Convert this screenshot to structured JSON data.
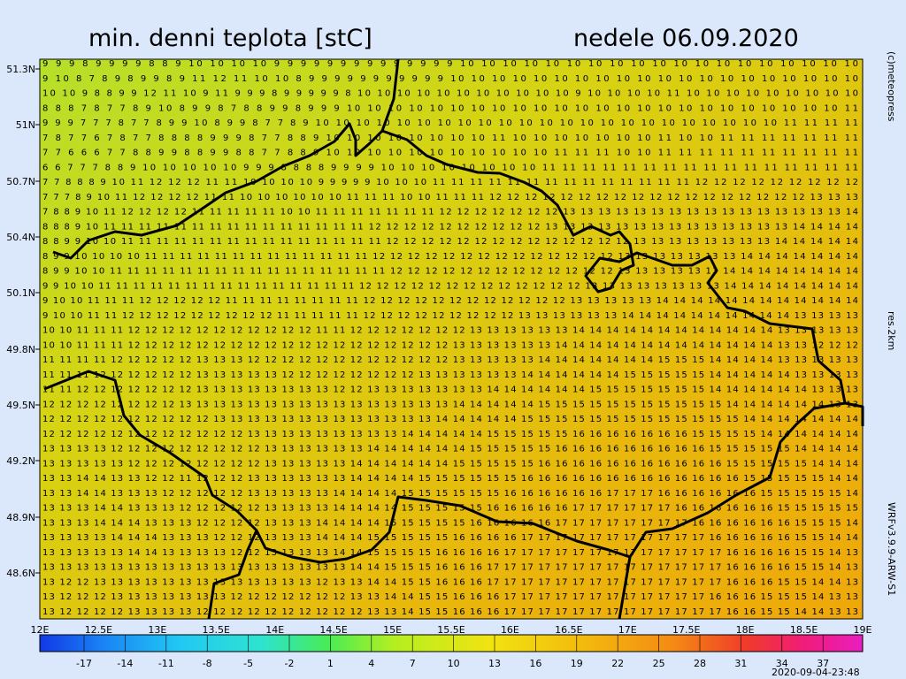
{
  "header": {
    "title": "min. denni teplota [stC]",
    "date": "nedele 06.09.2020"
  },
  "side_labels": [
    "(c)meteopress",
    "res.2km",
    "WRFv3.9.9-ARW-S1"
  ],
  "timestamp": "2020-09-04-23:48",
  "lat_labels": [
    "51.3N",
    "51N",
    "50.7N",
    "50.4N",
    "50.1N",
    "49.8N",
    "49.5N",
    "49.2N",
    "48.9N",
    "48.6N"
  ],
  "lon_labels": [
    "12E",
    "12.5E",
    "13E",
    "13.5E",
    "14E",
    "14.5E",
    "15E",
    "15.5E",
    "16E",
    "16.5E",
    "17E",
    "17.5E",
    "18E",
    "18.5E",
    "19E"
  ],
  "colorbar_labels": [
    "-17",
    "-14",
    "-11",
    "-8",
    "-5",
    "-2",
    "1",
    "4",
    "7",
    "10",
    "13",
    "16",
    "19",
    "22",
    "25",
    "28",
    "31",
    "34",
    "37"
  ],
  "grid_rows": [
    "9 9 9 8 9 9 9 9 8 8 9 10 10 10 10 9 9 9 9 9 9 9 9 9 9 9 9 9 9 10 10 10 10 10 10 10 10 10 10 10 10 10 10 10 10 10 10 10",
    "9 10 8 7 8 9 8 9 9 8 9 11 12 11 10 10 8 9 9 9 9 9 9 9 9 9 9 9 10 10 10 10 10 10 10 10 10 10 10 10 10 10 10 10 10 10 10 10",
    "10 10 9 8 8 9 9 12 11 10 9 11 9 9 9 8 9 9 9 9 9 8 10 10 10 10 10 10 10 10 10 10 10 9 10 10 10 10 11 10 10 10 10 10 10 10 10 10",
    "8 8 8 7 8 7 7 8 9 10 8 9 9 8 7 8 8 9 9 8 9 9 9 10 10 10 10 10 10 10 10 10 10 10 10 10 10 10 10 10 10 10 10 10 10 10 10 11",
    "9 9 9 7 7 7 8 7 7 8 9 9 10 8 9 9 8 7 7 8 9 10 10 10 10 10 10 10 10 10 10 10 10 10 10 10 10 10 10 10 10 10 10 10 11 11 11 11",
    "7 8 7 7 6 7 8 7 7 8 8 8 8 9 9 9 8 7 7 8 8 9 10 10 10 10 10 10 10 10 11 10 10 10 10 10 10 10 11 10 10 11 11 11 11 11 11 11",
    "7 7 6 6 6 7 7 8 8 9 9 8 8 9 9 8 8 7 7 8 8 9 10 10 10 10 10 10 10 10 10 10 10 11 11 11 10 10 11 11 11 11 11 11 11 11 11 11",
    "6 6 7 7 7 8 8 9 10 10 10 10 10 9 9 9 8 8 8 8 9 9 9 9 10 10 10 10 10 10 10 10 11 11 11 11 11 11 11 11 11 11 11 11 11 11 11 11",
    "7 7 8 8 8 9 10 11 12 12 12 11 11 10 10 10 10 9 9 9 9 9 10 10 10 11 11 11 11 11 11 11 11 11 11 11 11 11 11 12 12 12 12 12 12 12 12 12",
    "7 7 7 8 9 10 11 12 12 12 12 11 11 10 10 10 10 10 10 11 11 11 10 10 11 11 11 12 12 12 12 12 12 12 12 12 12 12 12 12 12 12 12 12 12 13 13 13",
    "7 8 8 9 10 11 12 12 12 12 11 11 11 11 11 10 10 11 11 11 11 11 11 11 12 12 12 12 12 12 12 13 13 13 13 13 13 13 13 13 13 13 13 13 13 13 13 14",
    "8 8 8 9 10 11 11 11 11 11 11 11 11 11 11 11 11 11 11 11 12 12 12 12 12 12 12 12 12 12 13 13 13 13 13 13 13 13 13 13 13 13 13 13 14 14 14 14",
    "8 8 9 9 10 10 11 11 11 11 11 11 11 11 11 11 11 11 11 11 11 12 12 12 12 12 12 12 12 12 12 12 12 12 12 13 13 13 13 13 13 13 13 14 14 14 14 14",
    "8 9 9 10 10 10 10 11 11 11 11 11 11 11 11 11 11 11 11 11 12 12 12 12 12 12 12 12 12 12 12 12 12 12 13 13 13 13 13 13 13 14 14 14 14 14 14 14",
    "8 9 9 10 10 11 11 11 11 11 11 11 11 11 11 11 11 11 11 11 11 12 12 12 12 12 12 12 12 12 12 12 12 12 13 13 13 13 13 13 14 14 14 14 14 14 14 14",
    "9 9 10 10 11 11 11 11 11 11 11 11 11 11 11 11 11 11 11 12 12 12 12 12 12 12 12 12 12 12 12 12 13 13 13 13 13 13 13 13 14 14 14 14 14 14 14 14",
    "9 10 10 11 11 11 12 12 12 12 12 11 11 11 11 11 11 11 11 12 12 12 12 12 12 12 12 12 12 12 12 13 13 13 13 13 14 14 14 14 14 14 14 14 14 14 14 14",
    "9 10 10 11 11 12 12 12 12 12 12 12 12 12 11 11 11 11 11 12 12 12 12 12 12 12 12 12 13 13 13 13 13 13 14 14 14 14 14 14 14 14 14 14 13 13 13 13",
    "10 10 11 11 11 12 12 12 12 12 12 12 12 12 12 12 11 11 12 12 12 12 12 12 12 13 13 13 13 13 13 14 14 14 14 14 14 14 14 14 14 14 14 13 13 13 13 13",
    "10 10 11 11 11 12 12 12 12 12 12 12 12 12 12 12 12 12 12 12 12 12 12 12 13 13 13 13 13 13 14 14 14 14 14 14 14 14 14 14 14 14 14 13 13 12 12 12",
    "11 11 11 11 12 12 12 12 12 13 13 13 12 12 12 12 12 12 12 12 12 12 12 12 13 13 13 13 13 14 14 14 14 14 14 14 15 15 15 14 14 14 14 13 13 13 13 13",
    "11 11 11 12 12 12 12 12 12 13 13 13 13 13 12 12 12 12 12 12 12 12 13 13 13 13 13 13 14 14 14 14 14 14 15 15 15 15 15 14 14 14 14 14 13 13 13 13",
    "11 11 12 12 12 12 12 12 12 13 13 13 13 13 13 13 13 12 12 13 13 13 13 13 13 13 14 14 14 14 14 14 15 15 15 15 15 15 15 14 14 14 14 14 14 13 13 13",
    "12 12 12 12 12 12 12 12 13 13 13 13 13 13 13 13 13 13 13 13 13 13 13 13 14 14 14 14 14 15 15 15 15 15 15 15 15 15 15 15 14 14 14 14 14 14 13 13",
    "12 12 12 12 12 12 12 12 12 12 13 13 13 13 13 13 13 13 13 13 13 13 13 14 14 14 14 14 15 15 15 15 15 15 15 15 15 15 15 15 15 14 14 14 14 14 14 14",
    "12 12 12 12 12 12 12 12 12 12 12 12 13 13 13 13 13 13 13 13 13 14 14 14 14 14 15 15 15 15 15 16 16 16 16 16 16 16 15 15 15 15 14 14 14 14 14 14",
    "13 13 13 13 12 12 12 12 12 12 12 12 12 13 13 13 13 13 13 14 14 14 14 14 14 15 15 15 15 15 16 16 16 16 16 16 16 16 16 15 15 15 15 15 14 14 14 14",
    "13 13 13 13 13 12 12 12 12 12 12 12 12 13 13 13 13 13 14 14 14 14 14 14 15 15 15 15 15 16 16 16 16 16 16 16 16 16 16 16 15 15 15 15 15 14 14 14",
    "13 13 14 14 13 13 12 12 11 12 12 12 13 13 13 13 13 13 14 14 14 14 15 15 15 15 15 15 16 16 16 16 16 16 16 16 16 16 16 16 16 15 15 15 15 15 14 14",
    "13 13 14 14 13 13 13 12 12 12 12 12 13 13 13 13 13 14 14 14 14 15 15 15 15 15 15 16 16 16 16 16 16 17 17 17 16 16 16 16 16 16 15 15 15 15 15 14",
    "13 13 13 14 14 13 13 13 12 12 12 12 12 13 13 13 13 14 14 14 14 15 15 15 15 15 16 16 16 16 16 17 17 17 17 17 17 16 16 16 16 16 16 15 15 15 15 15",
    "13 13 13 14 14 14 13 13 13 12 12 12 12 13 13 13 14 14 14 14 15 15 15 15 15 16 16 16 16 16 17 17 17 17 17 17 17 17 16 16 16 16 16 16 15 15 15 14",
    "13 13 13 13 14 14 14 13 13 13 12 12 12 13 13 13 14 14 14 15 15 15 15 15 16 16 16 16 17 17 17 17 17 17 17 17 17 17 17 16 16 16 16 16 15 15 14 14",
    "13 13 13 13 13 14 14 13 13 13 13 12 12 13 13 13 13 14 14 15 15 15 15 16 16 16 16 17 17 17 17 17 17 17 17 17 17 17 17 17 16 16 16 16 15 15 14 13",
    "13 13 13 13 13 13 13 13 13 13 13 13 13 13 13 13 13 13 14 14 15 15 15 16 16 16 17 17 17 17 17 17 17 17 17 17 17 17 17 17 16 16 16 16 15 15 14 13",
    "13 12 12 13 13 13 13 13 13 13 13 13 13 13 13 13 12 13 13 14 14 15 15 16 16 16 17 17 17 17 17 17 17 17 17 17 17 17 17 17 16 16 16 15 15 14 14 13",
    "13 12 12 12 13 13 13 13 13 13 13 12 12 12 12 12 12 12 13 13 14 14 15 15 16 16 16 17 17 17 17 17 17 17 17 17 17 17 17 16 16 16 15 15 15 14 13 13",
    "13 12 12 12 12 13 13 13 13 12 12 12 12 12 12 12 12 12 12 13 13 14 15 15 16 16 16 17 17 17 17 17 17 17 17 17 17 17 17 17 16 16 15 15 14 14 13 13"
  ]
}
